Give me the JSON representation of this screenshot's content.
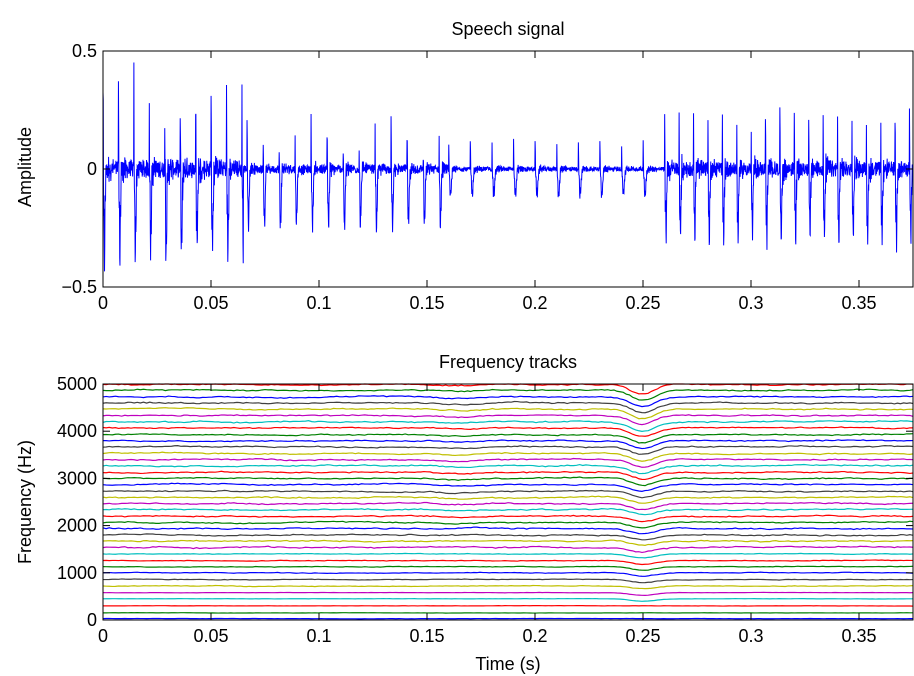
{
  "chart_data": [
    {
      "type": "line",
      "title": "Speech signal",
      "xlabel": "",
      "ylabel": "Amplitude",
      "xlim": [
        0,
        0.375
      ],
      "ylim": [
        -0.5,
        0.5
      ],
      "x_ticks": [
        0,
        0.05,
        0.1,
        0.15,
        0.2,
        0.25,
        0.3,
        0.35
      ],
      "x_tick_labels": [
        "0",
        "0.05",
        "0.1",
        "0.15",
        "0.2",
        "0.25",
        "0.3",
        "0.35"
      ],
      "y_ticks": [
        -0.5,
        0,
        0.5
      ],
      "y_tick_labels": [
        "−0.5",
        "0",
        "0.5"
      ],
      "grid": false,
      "line_color": "#0000ff",
      "segments": [
        {
          "t_start": 0.0,
          "t_end": 0.065,
          "pitch_hz": 140,
          "peak_high": 0.34,
          "peak_low": -0.3,
          "buzz": 0.12
        },
        {
          "t_start": 0.065,
          "t_end": 0.16,
          "pitch_hz": 135,
          "peak_high": 0.2,
          "peak_low": -0.22,
          "buzz": 0.06
        },
        {
          "t_start": 0.16,
          "t_end": 0.26,
          "pitch_hz": 100,
          "peak_high": 0.12,
          "peak_low": -0.1,
          "buzz": 0.03
        },
        {
          "t_start": 0.26,
          "t_end": 0.375,
          "pitch_hz": 150,
          "peak_high": 0.24,
          "peak_low": -0.26,
          "buzz": 0.1
        }
      ]
    },
    {
      "type": "line",
      "title": "Frequency tracks",
      "xlabel": "Time (s)",
      "ylabel": "Frequency (Hz)",
      "xlim": [
        0,
        0.375
      ],
      "ylim": [
        0,
        5000
      ],
      "x_ticks": [
        0,
        0.05,
        0.1,
        0.15,
        0.2,
        0.25,
        0.3,
        0.35
      ],
      "x_tick_labels": [
        "0",
        "0.05",
        "0.1",
        "0.15",
        "0.2",
        "0.25",
        "0.3",
        "0.35"
      ],
      "y_ticks": [
        0,
        1000,
        2000,
        3000,
        4000,
        5000
      ],
      "y_tick_labels": [
        "0",
        "1000",
        "2000",
        "3000",
        "4000",
        "5000"
      ],
      "grid": false,
      "track_base_frequencies_hz": [
        30,
        150,
        300,
        450,
        580,
        720,
        860,
        1000,
        1130,
        1260,
        1400,
        1540,
        1670,
        1800,
        1940,
        2070,
        2200,
        2340,
        2470,
        2600,
        2730,
        2870,
        3000,
        3130,
        3270,
        3400,
        3530,
        3670,
        3800,
        3930,
        4070,
        4200,
        4330,
        4470,
        4600,
        4730,
        4870,
        4990
      ],
      "track_colors": [
        "#0000ff",
        "#008000",
        "#ff0000",
        "#00bfbf",
        "#bf00bf",
        "#bfbf00",
        "#404040"
      ],
      "dip_time_s": 0.25,
      "dip_depth_hz": 180
    }
  ]
}
